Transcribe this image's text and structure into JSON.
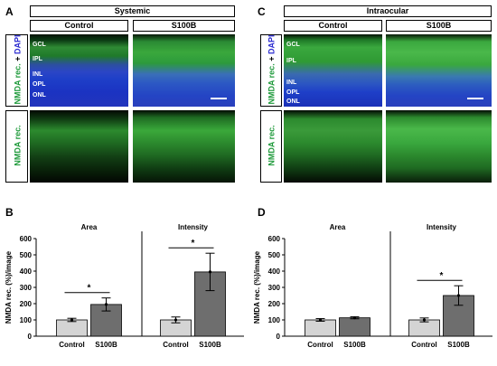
{
  "panels": {
    "A": {
      "letter": "A",
      "title": "Systemic",
      "col1": "Control",
      "col2": "S100B",
      "row1_label_green": "NMDA rec.",
      "row1_label_plus": " + ",
      "row1_label_blue": "DAPI",
      "row2_label": "NMDA rec.",
      "layers": [
        "GCL",
        "IPL",
        "INL",
        "OPL",
        "ONL"
      ]
    },
    "C": {
      "letter": "C",
      "title": "Intraocular",
      "col1": "Control",
      "col2": "S100B",
      "row1_label_green": "NMDA rec.",
      "row1_label_plus": " + ",
      "row1_label_blue": "DAPI",
      "row2_label": "NMDA rec.",
      "layers": [
        "GCL",
        "IPL",
        "INL",
        "OPL",
        "ONL"
      ]
    },
    "B": {
      "letter": "B"
    },
    "D": {
      "letter": "D"
    }
  },
  "colors": {
    "green_label": "#1f9a3b",
    "blue_label": "#2b2bd0",
    "control_bar": "#d4d4d4",
    "s100b_bar": "#6e6e6e"
  },
  "chart_data": [
    {
      "type": "bar",
      "panel": "B",
      "ylabel": "NMDA rec. (%)/image",
      "ylim": [
        0,
        600
      ],
      "yticks": [
        0,
        100,
        200,
        300,
        400,
        500,
        600
      ],
      "groups": [
        {
          "title": "Area",
          "categories": [
            "Control",
            "S100B"
          ],
          "values": [
            100,
            195
          ],
          "errors": [
            10,
            40
          ],
          "significance": "*"
        },
        {
          "title": "Intensity",
          "categories": [
            "Control",
            "S100B"
          ],
          "values": [
            100,
            395
          ],
          "errors": [
            18,
            115
          ],
          "significance": "*"
        }
      ]
    },
    {
      "type": "bar",
      "panel": "D",
      "ylabel": "NMDA rec. (%)/image",
      "ylim": [
        0,
        600
      ],
      "yticks": [
        0,
        100,
        200,
        300,
        400,
        500,
        600
      ],
      "groups": [
        {
          "title": "Area",
          "categories": [
            "Control",
            "S100B"
          ],
          "values": [
            100,
            113
          ],
          "errors": [
            8,
            6
          ],
          "significance": ""
        },
        {
          "title": "Intensity",
          "categories": [
            "Control",
            "S100B"
          ],
          "values": [
            100,
            250
          ],
          "errors": [
            12,
            60
          ],
          "significance": "*"
        }
      ]
    }
  ]
}
